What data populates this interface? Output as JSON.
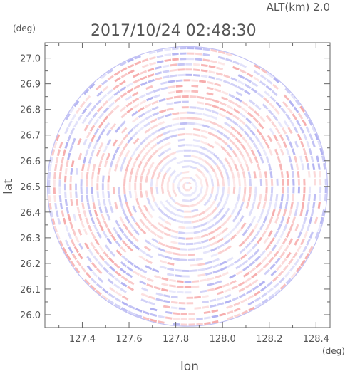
{
  "chart_data": {
    "type": "heatmap",
    "altitude_label": "ALT(km)  2.0",
    "timestamp": "2017/10/24  02:48:30",
    "xlabel": "lon",
    "ylabel": "lat",
    "x_unit": "(deg)",
    "y_unit": "(deg)",
    "xlim": [
      127.24,
      128.46
    ],
    "ylim": [
      25.95,
      27.06
    ],
    "x_ticks": [
      127.4,
      127.6,
      127.8,
      128.0,
      128.2,
      128.4
    ],
    "x_tick_labels": [
      "127.4",
      "127.6",
      "127.8",
      "128.0",
      "128.2",
      "128.4"
    ],
    "y_ticks": [
      26.0,
      26.1,
      26.2,
      26.3,
      26.4,
      26.5,
      26.6,
      26.7,
      26.8,
      26.9,
      27.0
    ],
    "y_tick_labels": [
      "26.0",
      "26.1",
      "26.2",
      "26.3",
      "26.4",
      "26.5",
      "26.6",
      "26.7",
      "26.8",
      "26.9",
      "27.0"
    ],
    "radar_center": {
      "lon": 127.85,
      "lat": 26.5
    },
    "radar_range_deg": {
      "lon": 0.605,
      "lat": 0.545
    },
    "colors": {
      "positive": "#f5a0a0",
      "negative": "#a8a8f0",
      "neutral": "#ffffff",
      "frame": "#666666"
    }
  }
}
